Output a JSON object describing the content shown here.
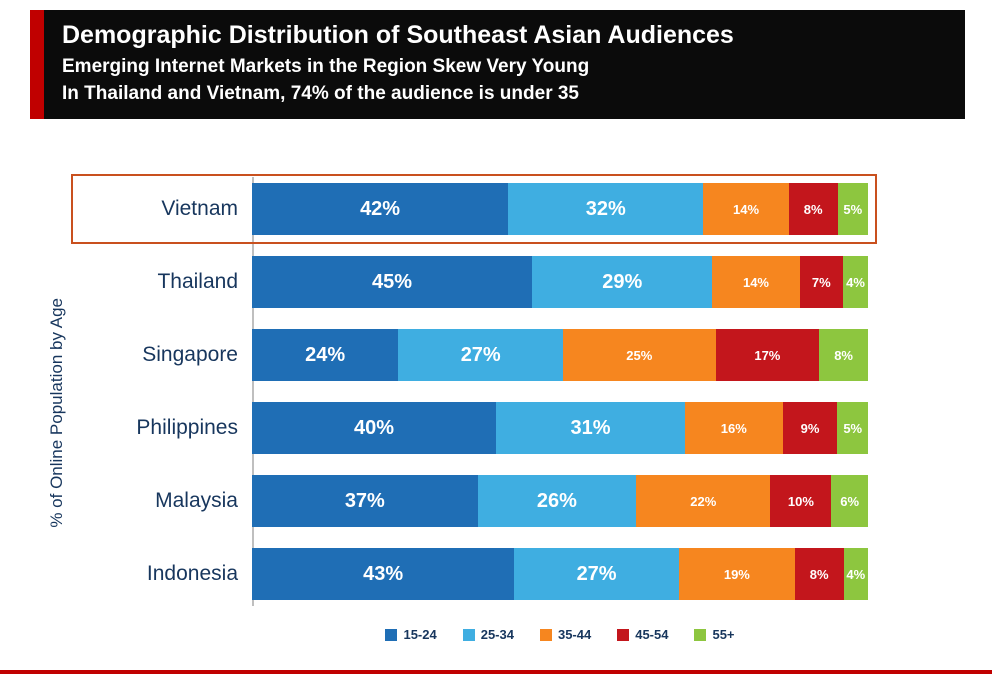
{
  "header": {
    "title": "Demographic Distribution of Southeast Asian Audiences",
    "subtitle1": "Emerging Internet Markets in the Region Skew Very Young",
    "subtitle2": "In Thailand and Vietnam, 74% of the audience is under 35"
  },
  "chart": {
    "ylabel": "% of Online Population by Age",
    "highlighted_row": "Vietnam"
  },
  "chart_data": {
    "type": "bar",
    "orientation": "horizontal-stacked",
    "title": "Demographic Distribution of Southeast Asian Audiences",
    "ylabel": "% of Online Population by Age",
    "legend_position": "bottom",
    "categories": [
      "Vietnam",
      "Thailand",
      "Singapore",
      "Philippines",
      "Malaysia",
      "Indonesia"
    ],
    "series": [
      {
        "name": "15-24",
        "color": "#1F6EB5",
        "values": [
          42,
          45,
          24,
          40,
          37,
          43
        ]
      },
      {
        "name": "25-34",
        "color": "#3FAEE1",
        "values": [
          32,
          29,
          27,
          31,
          26,
          27
        ]
      },
      {
        "name": "35-44",
        "color": "#F6861F",
        "values": [
          14,
          14,
          25,
          16,
          22,
          19
        ]
      },
      {
        "name": "45-54",
        "color": "#C3161C",
        "values": [
          8,
          7,
          17,
          9,
          10,
          8
        ]
      },
      {
        "name": "55+",
        "color": "#8DC63F",
        "values": [
          5,
          4,
          8,
          5,
          6,
          4
        ]
      }
    ]
  },
  "colors": {
    "accent_red": "#C00000",
    "header_bg": "#0B0B0B",
    "label_navy": "#17365D",
    "highlight_border": "#C9501E",
    "axis_gray": "#BFBFBF",
    "bottom_line": "#C00000"
  }
}
